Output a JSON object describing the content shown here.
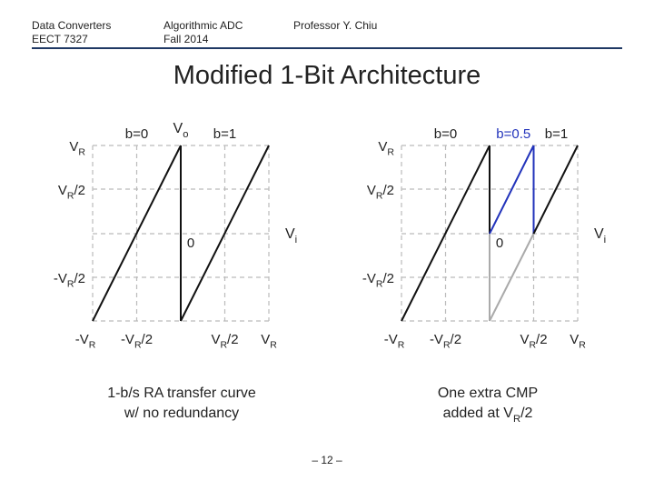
{
  "header": {
    "course": [
      "Data Converters",
      "EECT 7327"
    ],
    "topic": [
      "Algorithmic ADC",
      "Fall 2014"
    ],
    "author": "Professor Y. Chiu"
  },
  "title": "Modified 1-Bit Architecture",
  "plots": [
    {
      "y_labels": [
        {
          "prefix": "V",
          "sub": "R"
        },
        {
          "prefix": "V",
          "sub": "R",
          "suffix": "/2"
        },
        {
          "prefix": "-V",
          "sub": "R",
          "suffix": "/2"
        }
      ],
      "x_labels": [
        {
          "prefix": "-V",
          "sub": "R"
        },
        {
          "prefix": "-V",
          "sub": "R",
          "suffix": "/2"
        },
        {
          "prefix": "V",
          "sub": "R",
          "suffix": "/2"
        },
        {
          "prefix": "V",
          "sub": "R"
        }
      ],
      "b_labels": [
        "b=0",
        "b=1"
      ],
      "output_label": {
        "prefix": "V",
        "sub": "o"
      },
      "input_label": {
        "prefix": "V",
        "sub": "i"
      },
      "origin_label": "0",
      "caption": [
        "1-b/s RA transfer curve",
        "w/ no redundancy"
      ]
    },
    {
      "y_labels": [
        {
          "prefix": "V",
          "sub": "R"
        },
        {
          "prefix": "V",
          "sub": "R",
          "suffix": "/2"
        },
        {
          "prefix": "-V",
          "sub": "R",
          "suffix": "/2"
        }
      ],
      "x_labels": [
        {
          "prefix": "-V",
          "sub": "R"
        },
        {
          "prefix": "-V",
          "sub": "R",
          "suffix": "/2"
        },
        {
          "prefix": "V",
          "sub": "R",
          "suffix": "/2"
        },
        {
          "prefix": "V",
          "sub": "R"
        }
      ],
      "b_labels": [
        "b=0",
        "b=0.5",
        "b=1"
      ],
      "input_label": {
        "prefix": "V",
        "sub": "i"
      },
      "origin_label": "0",
      "caption": [
        "One extra CMP",
        {
          "prefix": "added at V",
          "sub": "R",
          "suffix": "/2"
        }
      ]
    }
  ],
  "page_number": "– 12 –"
}
